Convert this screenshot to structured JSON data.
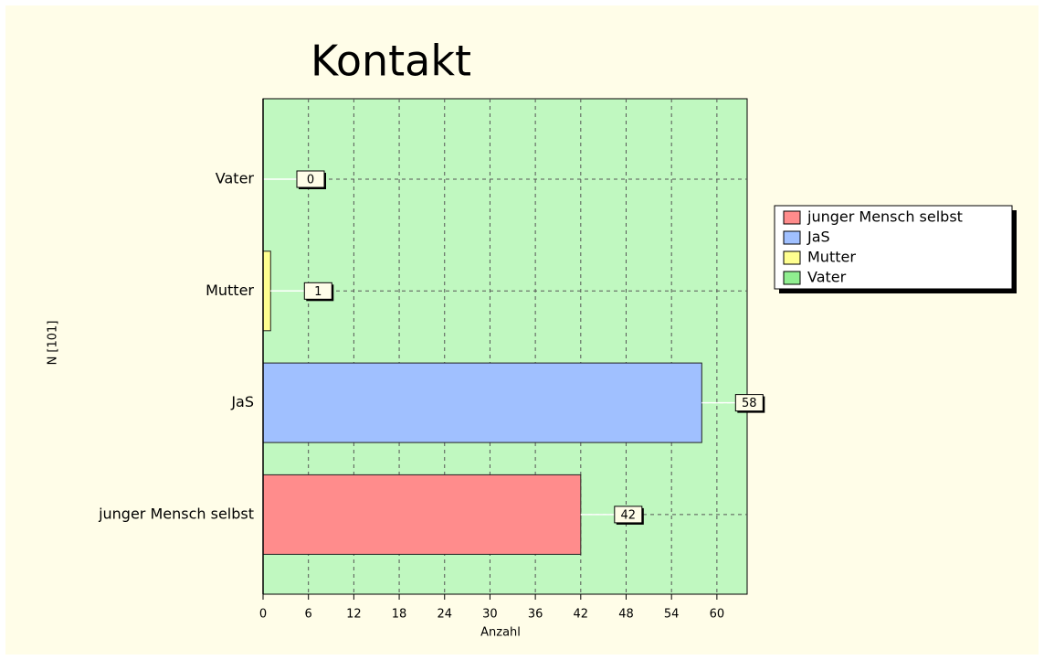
{
  "chart_data": {
    "type": "bar",
    "orientation": "horizontal",
    "title": "Kontakt",
    "categories": [
      "Vater",
      "Mutter",
      "JaS",
      "junger Mensch selbst"
    ],
    "values": [
      0,
      1,
      58,
      42
    ],
    "colors": [
      "#90ee90",
      "#ffff90",
      "#a0c0ff",
      "#ff8c8c"
    ],
    "xlabel": "Anzahl",
    "ylabel": "N [101]",
    "xlim": [
      0,
      64
    ],
    "xticks": [
      0,
      6,
      12,
      18,
      24,
      30,
      36,
      42,
      48,
      54,
      60
    ],
    "grid": true,
    "legend": "right"
  }
}
